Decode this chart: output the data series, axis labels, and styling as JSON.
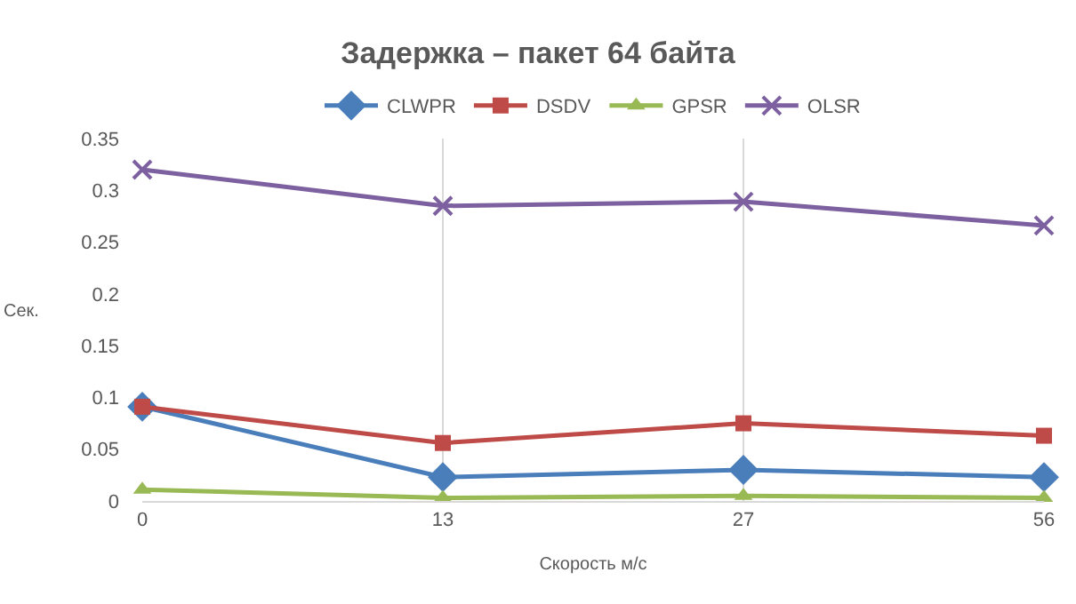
{
  "chart_data": {
    "type": "line",
    "title": "Задержка – пакет 64 байта",
    "xlabel": "Скорость м/с",
    "ylabel": "Сек.",
    "categories": [
      "0",
      "13",
      "27",
      "56"
    ],
    "series": [
      {
        "name": "CLWPR",
        "color": "#4a7ebb",
        "marker": "diamond",
        "values": [
          0.091,
          0.023,
          0.03,
          0.023
        ]
      },
      {
        "name": "DSDV",
        "color": "#be4b48",
        "marker": "square",
        "values": [
          0.091,
          0.056,
          0.075,
          0.063
        ]
      },
      {
        "name": "GPSR",
        "color": "#98b954",
        "marker": "triangle",
        "values": [
          0.011,
          0.003,
          0.005,
          0.003
        ]
      },
      {
        "name": "OLSR",
        "color": "#7d60a0",
        "marker": "cross",
        "values": [
          0.32,
          0.285,
          0.289,
          0.266
        ]
      }
    ],
    "ylim": [
      0,
      0.35
    ],
    "yticks": [
      0,
      0.05,
      0.1,
      0.15,
      0.2,
      0.25,
      0.3,
      0.35
    ],
    "grid": "x",
    "legend": "top"
  }
}
